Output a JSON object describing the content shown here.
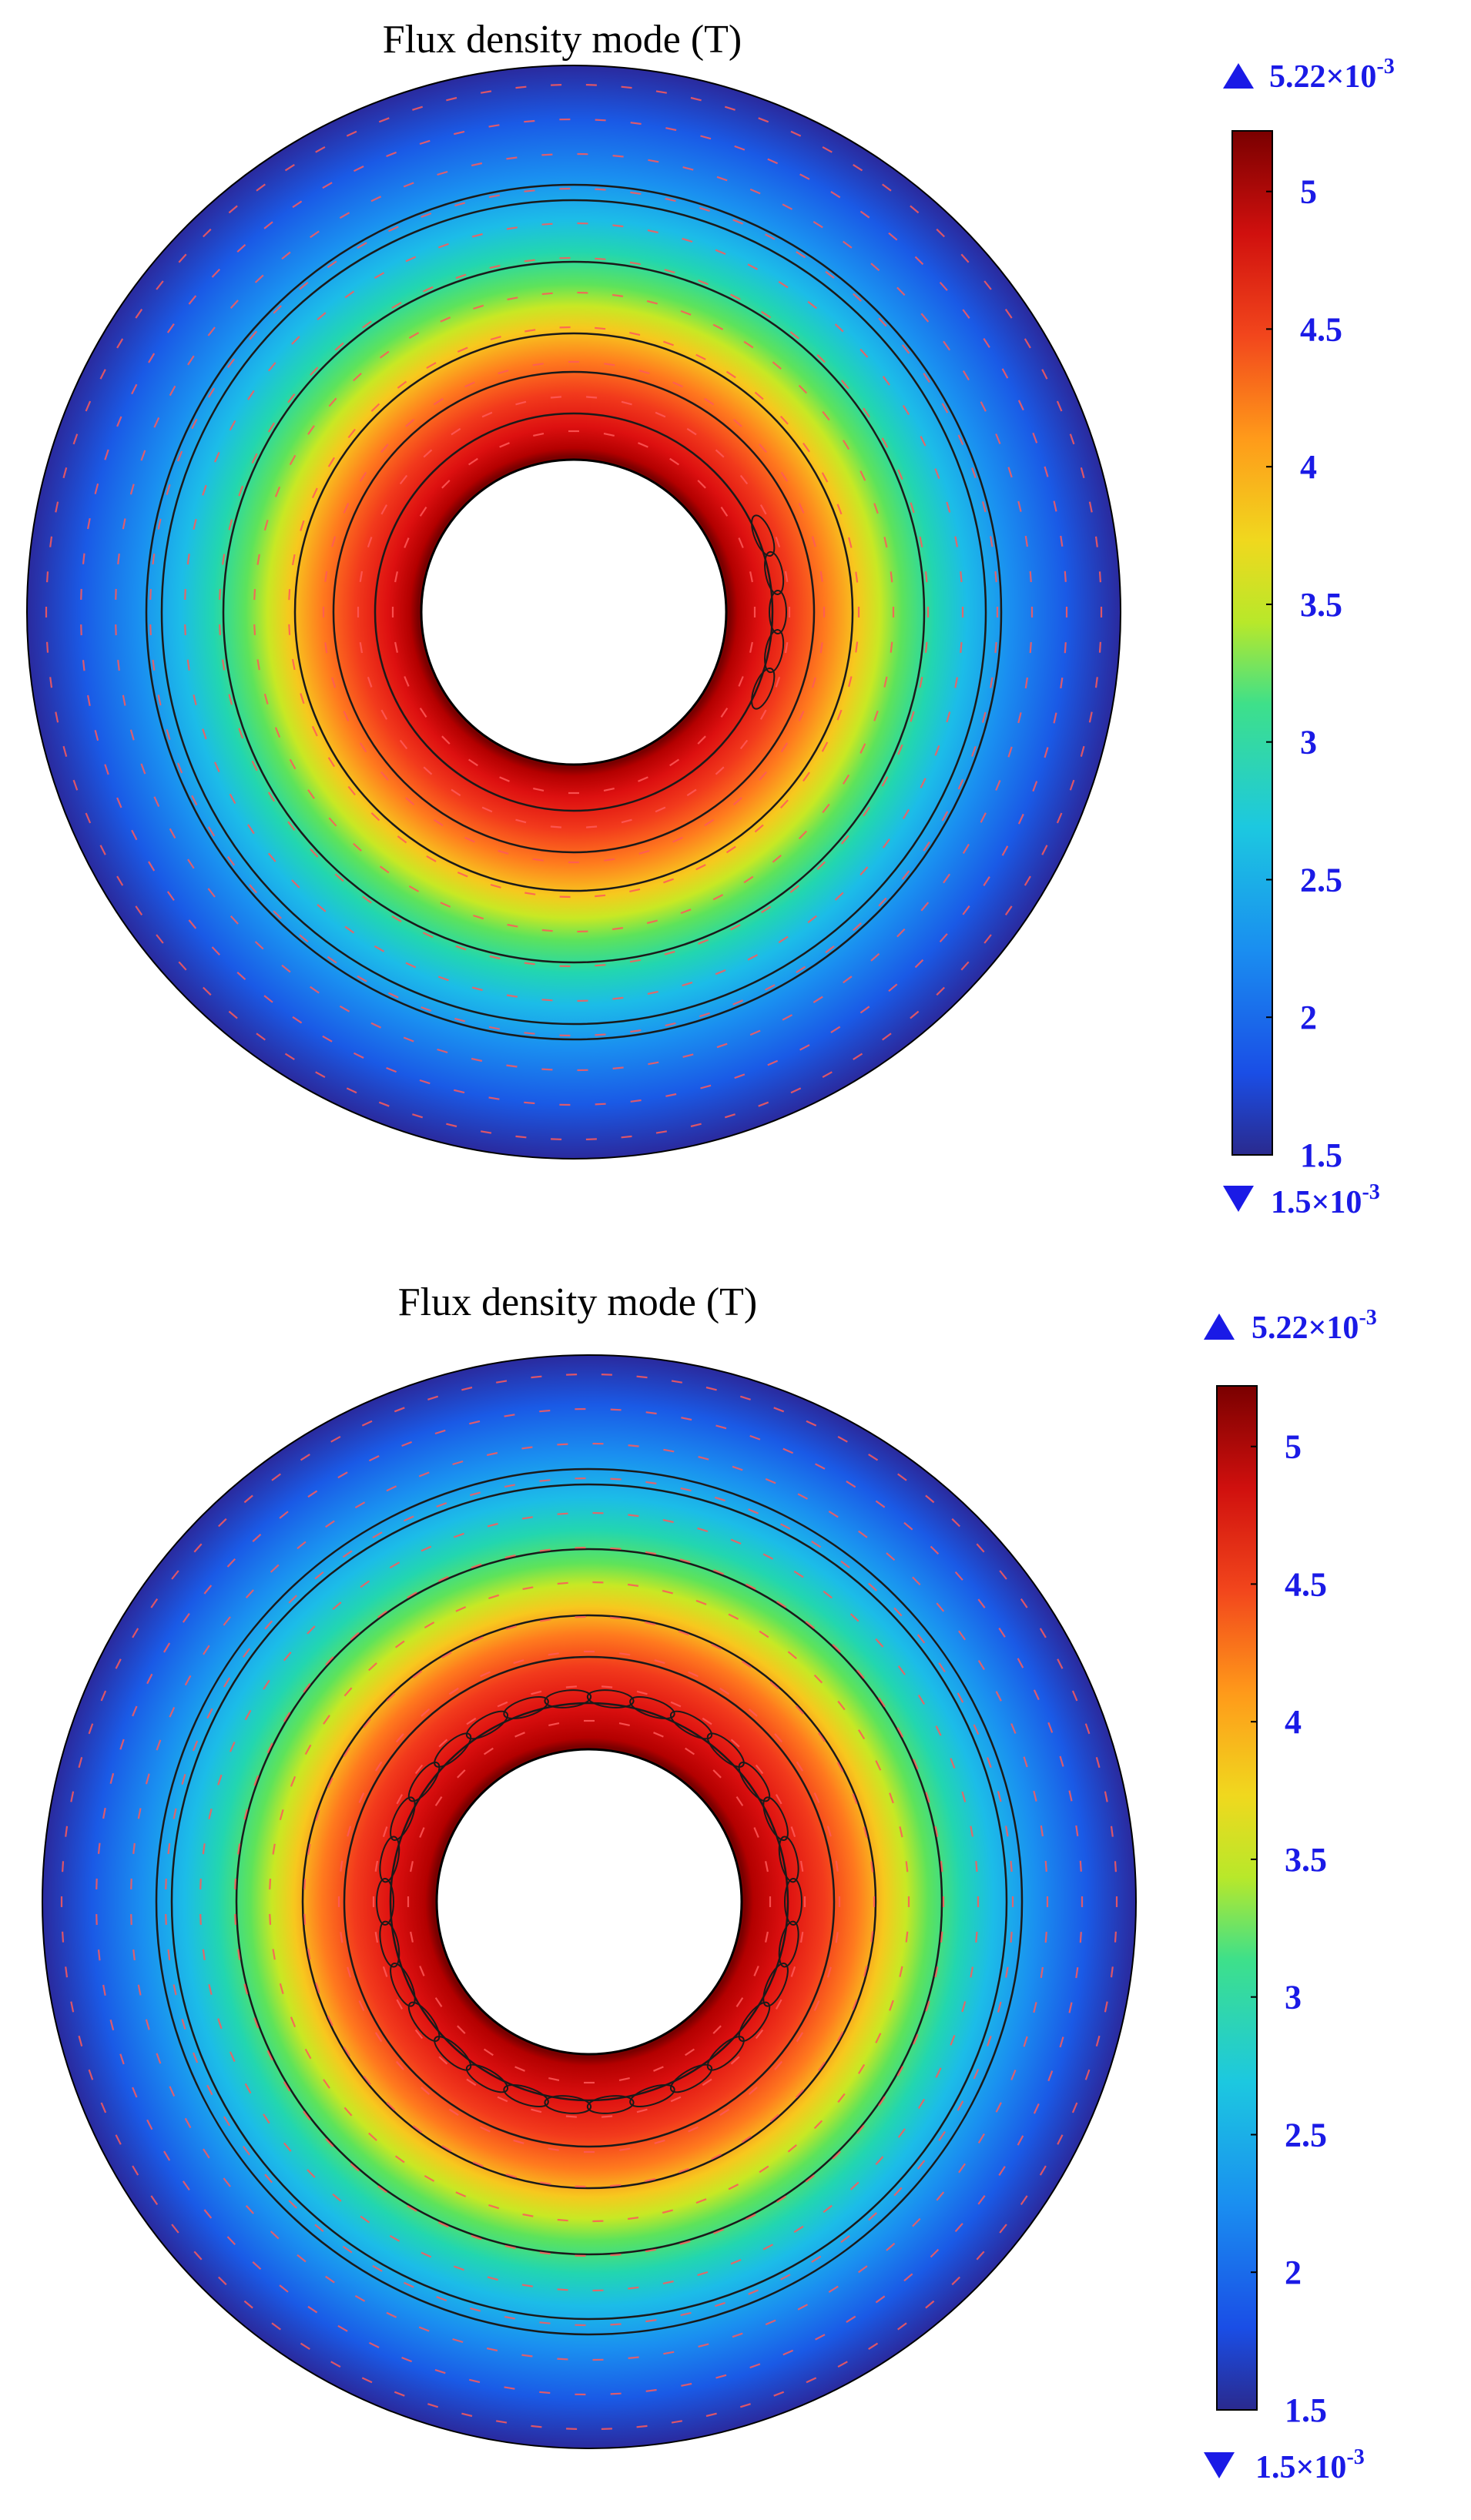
{
  "figures": [
    {
      "title": "Flux density mode (T)",
      "colorbar": {
        "max_label": "5.22×10",
        "max_exp": "-3",
        "min_label": "1.5×10",
        "min_exp": "-3",
        "ticks": [
          "5",
          "4.5",
          "4",
          "3.5",
          "3",
          "2.5",
          "2",
          "1.5"
        ],
        "tick_values": [
          5,
          4.5,
          4,
          3.5,
          3,
          2.5,
          2,
          1.5
        ],
        "range": [
          1.5,
          5.22
        ]
      },
      "winding_layout": "partial-arc",
      "colors": {
        "max_marker": "#1a1ae6",
        "min_marker": "#1a1ae6",
        "label": "#1a1ae6"
      }
    },
    {
      "title": "Flux density mode (T)",
      "colorbar": {
        "max_label": "5.22×10",
        "max_exp": "-3",
        "min_label": "1.5×10",
        "min_exp": "-3",
        "ticks": [
          "5",
          "4.5",
          "4",
          "3.5",
          "3",
          "2.5",
          "2",
          "1.5"
        ],
        "tick_values": [
          5,
          4.5,
          4,
          3.5,
          3,
          2.5,
          2,
          1.5
        ],
        "range": [
          1.5,
          5.22
        ]
      },
      "winding_layout": "full-ring",
      "colors": {
        "max_marker": "#1a1ae6",
        "min_marker": "#1a1ae6",
        "label": "#1a1ae6"
      }
    }
  ]
}
